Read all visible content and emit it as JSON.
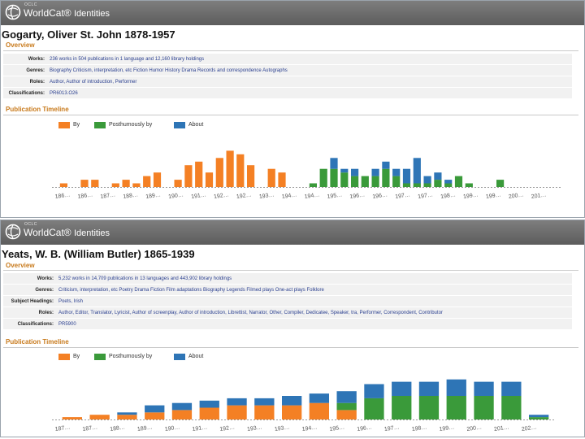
{
  "header": {
    "oclc": "OCLC",
    "logo": "WorldCat",
    "logo_suffix": "Identities",
    "logo_icon": "worldcat-globe-icon"
  },
  "colors": {
    "by": "#f48024",
    "posthumously": "#3a9a3a",
    "about": "#2e75b6",
    "header": "#6b6b6b",
    "section": "#c87a1c"
  },
  "screens": [
    {
      "title": "Gogarty, Oliver St. John 1878-1957",
      "overview_heading": "Overview",
      "info": [
        {
          "label": "Works:",
          "value": "236 works in 504 publications in 1 language and 12,160 library holdings"
        },
        {
          "label": "Genres:",
          "value": "Biography  Criticism, interpretation, etc  Fiction  Humor  History  Drama  Records and correspondence  Autographs"
        },
        {
          "label": "Roles:",
          "value": "Author, Author of introduction, Performer"
        },
        {
          "label": "Classifications:",
          "value": "PR6013.O26"
        }
      ],
      "timeline_heading": "Publication Timeline",
      "legend": [
        "By",
        "Posthumously by",
        "About"
      ]
    },
    {
      "title": "Yeats, W. B. (William Butler) 1865-1939",
      "overview_heading": "Overview",
      "info": [
        {
          "label": "Works:",
          "value": "5,232 works in 14,709 publications in 13 languages and 443,902 library holdings"
        },
        {
          "label": "Genres:",
          "value": "Criticism, interpretation, etc  Poetry  Drama  Fiction  Film adaptations  Biography  Legends  Filmed plays  One-act plays  Folklore"
        },
        {
          "label": "Subject Headings:",
          "value": "Poets, Irish"
        },
        {
          "label": "Roles:",
          "value": "Author, Editor, Translator, Lyricist, Author of screenplay, Author of introduction, Librettist, Narrator, Other, Compiler, Dedicatee, Speaker, tra, Performer, Correspondent, Contributor"
        },
        {
          "label": "Classifications:",
          "value": "PR5900"
        }
      ],
      "timeline_heading": "Publication Timeline",
      "legend": [
        "By",
        "Posthumously by",
        "About"
      ]
    }
  ],
  "chart_data": [
    {
      "type": "bar",
      "stacked": true,
      "categories": [
        "186",
        "186",
        "186",
        "187",
        "187",
        "187",
        "188",
        "188",
        "188",
        "189",
        "189",
        "189",
        "190",
        "190",
        "190",
        "191",
        "191",
        "191",
        "192",
        "192",
        "192",
        "193",
        "193",
        "193",
        "194",
        "194",
        "194",
        "195",
        "195",
        "195",
        "196",
        "196",
        "196",
        "197",
        "197",
        "197",
        "198",
        "198",
        "198",
        "199",
        "199",
        "199",
        "200",
        "200",
        "200",
        "201",
        "201",
        "201"
      ],
      "tick_labels": [
        "186",
        "186",
        "187",
        "188",
        "189",
        "190",
        "191",
        "192",
        "192",
        "193",
        "194",
        "194",
        "195",
        "196",
        "196",
        "197",
        "197",
        "198",
        "199",
        "199",
        "200",
        "201"
      ],
      "series": [
        {
          "name": "By",
          "values": [
            1,
            0,
            2,
            2,
            0,
            1,
            2,
            1,
            3,
            4,
            0,
            2,
            6,
            7,
            4,
            8,
            10,
            9,
            6,
            0,
            5,
            4,
            0,
            0,
            0,
            0,
            0,
            0,
            0,
            0,
            0,
            0,
            0,
            0,
            0,
            0,
            0,
            0,
            0,
            0,
            0,
            0,
            0,
            0,
            0,
            0,
            0,
            0
          ]
        },
        {
          "name": "Posthumously by",
          "values": [
            0,
            0,
            0,
            0,
            0,
            0,
            0,
            0,
            0,
            0,
            0,
            0,
            0,
            0,
            0,
            0,
            0,
            0,
            0,
            0,
            0,
            0,
            0,
            0,
            1,
            5,
            5,
            4,
            3,
            3,
            3,
            5,
            3,
            1,
            1,
            1,
            2,
            1,
            3,
            1,
            0,
            0,
            2,
            0,
            0,
            0,
            0,
            0
          ]
        },
        {
          "name": "About",
          "values": [
            0,
            0,
            0,
            0,
            0,
            0,
            0,
            0,
            0,
            0,
            0,
            0,
            0,
            0,
            0,
            0,
            0,
            0,
            0,
            0,
            0,
            0,
            0,
            0,
            0,
            0,
            3,
            1,
            2,
            0,
            2,
            2,
            2,
            4,
            7,
            2,
            2,
            1,
            0,
            0,
            0,
            0,
            0,
            0,
            0,
            0,
            0,
            0
          ]
        }
      ],
      "ylim": [
        0,
        13
      ]
    },
    {
      "type": "bar",
      "stacked": true,
      "categories": [
        "185",
        "186",
        "187",
        "188",
        "189",
        "190",
        "191",
        "192",
        "193",
        "194",
        "195",
        "196",
        "197",
        "198",
        "199",
        "200",
        "201",
        "202"
      ],
      "tick_labels": [
        "187",
        "187",
        "188",
        "189",
        "190",
        "191",
        "192",
        "193",
        "193",
        "194",
        "195",
        "196",
        "197",
        "198",
        "199",
        "200",
        "201",
        "202"
      ],
      "series": [
        {
          "name": "By",
          "values": [
            1,
            2,
            2,
            3,
            4,
            5,
            6,
            6,
            6,
            7,
            4,
            0,
            0,
            0,
            0,
            0,
            0,
            0
          ]
        },
        {
          "name": "Posthumously by",
          "values": [
            0,
            0,
            0,
            0,
            0,
            0,
            0,
            0,
            0,
            0,
            3,
            9,
            10,
            10,
            10,
            10,
            10,
            1
          ]
        },
        {
          "name": "About",
          "values": [
            0,
            0,
            1,
            3,
            3,
            3,
            3,
            3,
            4,
            4,
            5,
            6,
            6,
            6,
            7,
            6,
            6,
            1
          ]
        }
      ],
      "ylim": [
        0,
        20
      ]
    }
  ]
}
